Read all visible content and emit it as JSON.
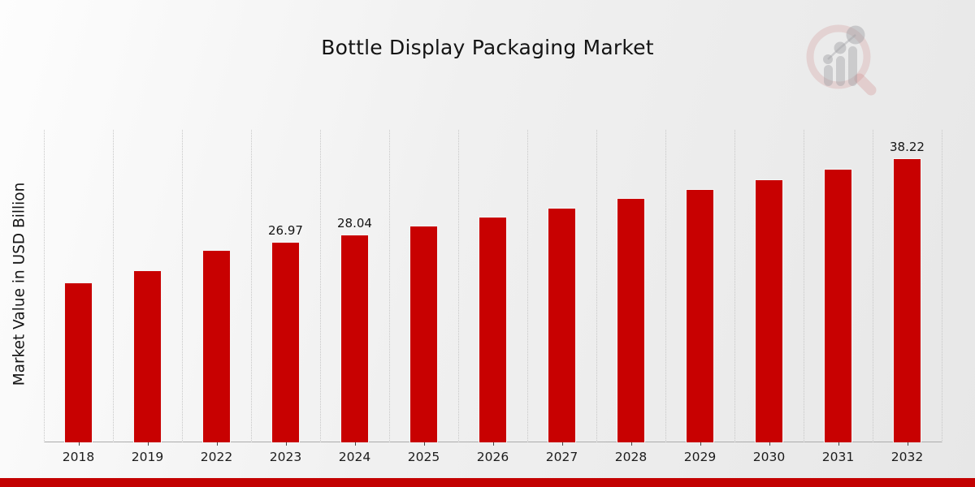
{
  "title": "Bottle Display Packaging Market",
  "y_axis_label": "Market Value in USD Billion",
  "colors": {
    "bar": "#c80101",
    "footer_bar": "#c30101",
    "grid": "#c7c7c7",
    "axis": "#ababab",
    "text": "#141414"
  },
  "logo": {
    "name": "market-research-future-watermark"
  },
  "chart_data": {
    "type": "bar",
    "title": "Bottle Display Packaging Market",
    "xlabel": "",
    "ylabel": "Market Value in USD Billion",
    "categories": [
      "2018",
      "2019",
      "2022",
      "2023",
      "2024",
      "2025",
      "2026",
      "2027",
      "2028",
      "2029",
      "2030",
      "2031",
      "2032"
    ],
    "values": [
      21.5,
      23.2,
      25.95,
      26.97,
      28.04,
      29.15,
      30.35,
      31.6,
      32.9,
      34.15,
      35.45,
      36.85,
      38.22
    ],
    "bar_labels": [
      "",
      "",
      "",
      "26.97",
      "28.04",
      "",
      "",
      "",
      "",
      "",
      "",
      "",
      "38.22"
    ],
    "ylim": [
      0,
      42.1
    ],
    "y_axis_ticks": "none",
    "grid": "vertical-dotted",
    "legend": "none",
    "bar_color": "#c80101"
  }
}
